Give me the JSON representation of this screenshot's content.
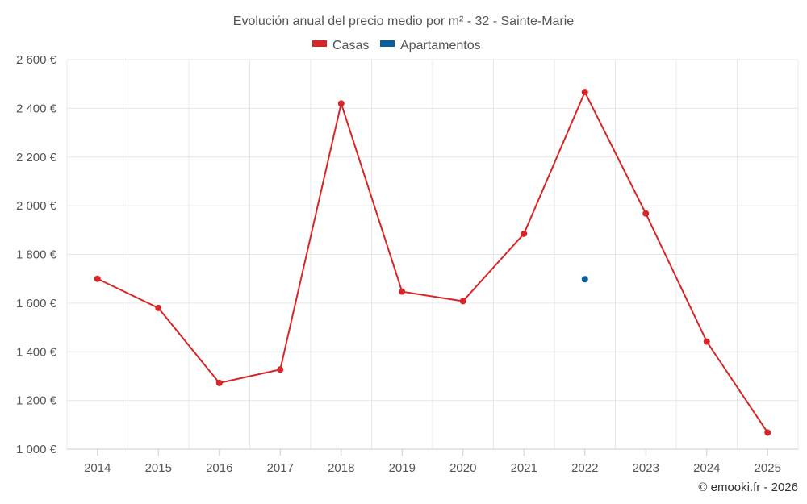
{
  "chart_data": {
    "type": "line",
    "title": "Evolución anual del precio medio por m² - 32 - Sainte-Marie",
    "categories": [
      "2014",
      "2015",
      "2016",
      "2017",
      "2018",
      "2019",
      "2020",
      "2021",
      "2022",
      "2023",
      "2024",
      "2025"
    ],
    "ylim": [
      1000,
      2600
    ],
    "yticks": [
      1000,
      1200,
      1400,
      1600,
      1800,
      2000,
      2200,
      2400,
      2600
    ],
    "ytick_labels": [
      "1 000 €",
      "1 200 €",
      "1 400 €",
      "1 600 €",
      "1 800 €",
      "2 000 €",
      "2 200 €",
      "2 400 €",
      "2 600 €"
    ],
    "grid": true,
    "legend_position": "top-center",
    "series": [
      {
        "name": "Casas",
        "color": "#d62728",
        "values": [
          1700,
          1580,
          1272,
          1327,
          2420,
          1647,
          1608,
          1885,
          2467,
          1968,
          1442,
          1068
        ]
      },
      {
        "name": "Apartamentos",
        "color": "#0b5f9c",
        "values": [
          null,
          null,
          null,
          null,
          null,
          null,
          null,
          null,
          1698,
          null,
          null,
          null
        ]
      }
    ]
  },
  "credit": "© emooki.fr - 2026"
}
